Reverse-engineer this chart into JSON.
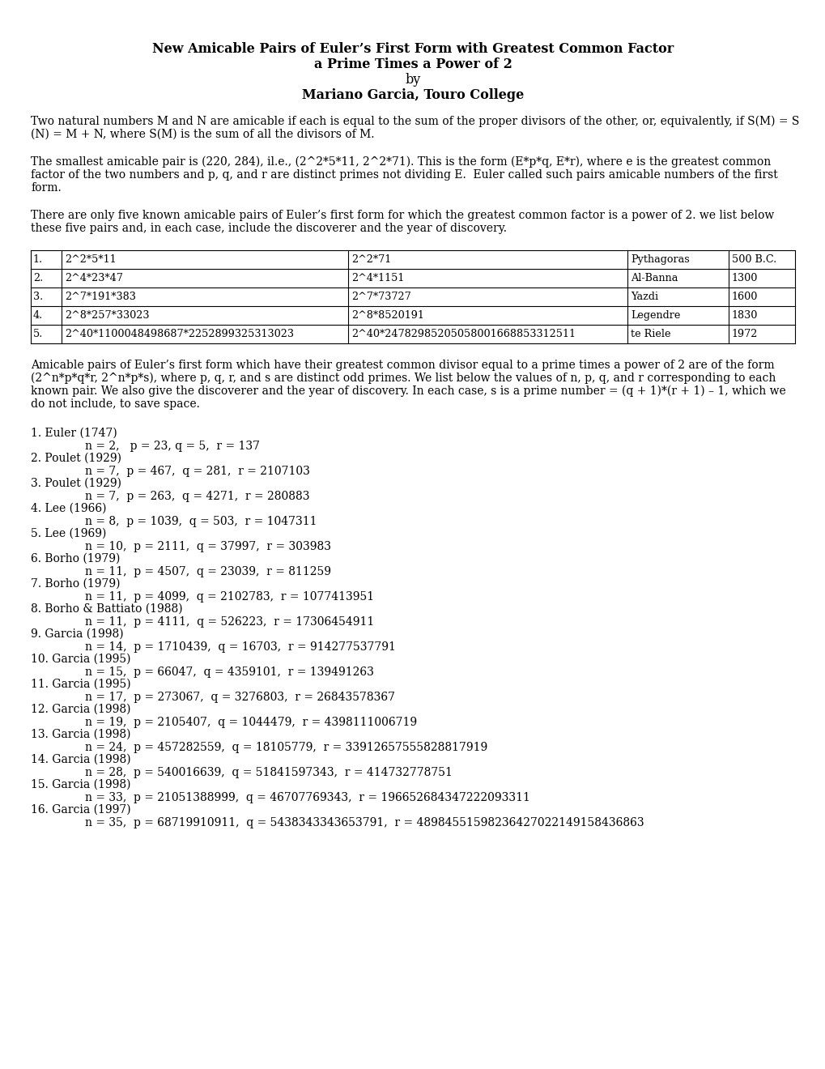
{
  "title_line1": "New Amicable Pairs of Euler’s First Form with Greatest Common Factor",
  "title_line2": "a Prime Times a Power of 2",
  "title_line3": "by",
  "title_line4": "Mariano Garcia, Touro College",
  "para1_lines": [
    "Two natural numbers M and N are amicable if each is equal to the sum of the proper divisors of the other, or, equivalently, if S(M) = S",
    "(N) = M + N, where S(M) is the sum of all the divisors of M."
  ],
  "para2_lines": [
    "The smallest amicable pair is (220, 284), il.e., (2^2*5*11, 2^2*71). This is the form (E*p*q, E*r), where e is the greatest common",
    "factor of the two numbers and p, q, and r are distinct primes not dividing E.  Euler called such pairs amicable numbers of the first",
    "form."
  ],
  "para3_lines": [
    "There are only five known amicable pairs of Euler’s first form for which the greatest common factor is a power of 2. we list below",
    "these five pairs and, in each case, include the discoverer and the year of discovery."
  ],
  "table_rows": [
    [
      "1.",
      "2^2*5*11",
      "2^2*71",
      "Pythagoras",
      "500 B.C."
    ],
    [
      "2.",
      "2^4*23*47",
      "2^4*1151",
      "Al-Banna",
      "1300"
    ],
    [
      "3.",
      "2^7*191*383",
      "2^7*73727",
      "Yazdi",
      "1600"
    ],
    [
      "4.",
      "2^8*257*33023",
      "2^8*8520191",
      "Legendre",
      "1830"
    ],
    [
      "5.",
      "2^40*1100048498687*2252899325313023",
      "2^40*24782985205058001668853312511",
      "te Riele",
      "1972"
    ]
  ],
  "para4_lines": [
    "Amicable pairs of Euler’s first form which have their greatest common divisor equal to a prime times a power of 2 are of the form",
    "(2^n*p*q*r, 2^n*p*s), where p, q, r, and s are distinct odd primes. We list below the values of n, p, q, and r corresponding to each",
    "known pair. We also give the discoverer and the year of discovery. In each case, s is a prime number = (q + 1)*(r + 1) – 1, which we",
    "do not include, to save space."
  ],
  "entries": [
    [
      "1. Euler (1747)",
      "n = 2,   p = 23, q = 5,  r = 137"
    ],
    [
      "2. Poulet (1929)",
      "n = 7,  p = 467,  q = 281,  r = 2107103"
    ],
    [
      "3. Poulet (1929)",
      "n = 7,  p = 263,  q = 4271,  r = 280883"
    ],
    [
      "4. Lee (1966)",
      "n = 8,  p = 1039,  q = 503,  r = 1047311"
    ],
    [
      "5. Lee (1969)",
      "n = 10,  p = 2111,  q = 37997,  r = 303983"
    ],
    [
      "6. Borho (1979)",
      "n = 11,  p = 4507,  q = 23039,  r = 811259"
    ],
    [
      "7. Borho (1979)",
      "n = 11,  p = 4099,  q = 2102783,  r = 1077413951"
    ],
    [
      "8. Borho & Battiato (1988)",
      "n = 11,  p = 4111,  q = 526223,  r = 17306454911"
    ],
    [
      "9. Garcia (1998)",
      "n = 14,  p = 1710439,  q = 16703,  r = 914277537791"
    ],
    [
      "10. Garcia (1995)",
      "n = 15,  p = 66047,  q = 4359101,  r = 139491263"
    ],
    [
      "11. Garcia (1995)",
      "n = 17,  p = 273067,  q = 3276803,  r = 26843578367"
    ],
    [
      "12. Garcia (1998)",
      "n = 19,  p = 2105407,  q = 1044479,  r = 4398111006719"
    ],
    [
      "13. Garcia (1998)",
      "n = 24,  p = 457282559,  q = 18105779,  r = 33912657555828817919"
    ],
    [
      "14. Garcia (1998)",
      "n = 28,  p = 540016639,  q = 51841597343,  r = 414732778751"
    ],
    [
      "15. Garcia (1998)",
      "n = 33,  p = 21051388999,  q = 46707769343,  r = 196652684347222093311"
    ],
    [
      "16. Garcia (1997)",
      "n = 35,  p = 68719910911,  q = 5438343343653791,  r = 48984551598236427022149158436863"
    ]
  ],
  "bg_color": "#ffffff",
  "text_color": "#000000"
}
